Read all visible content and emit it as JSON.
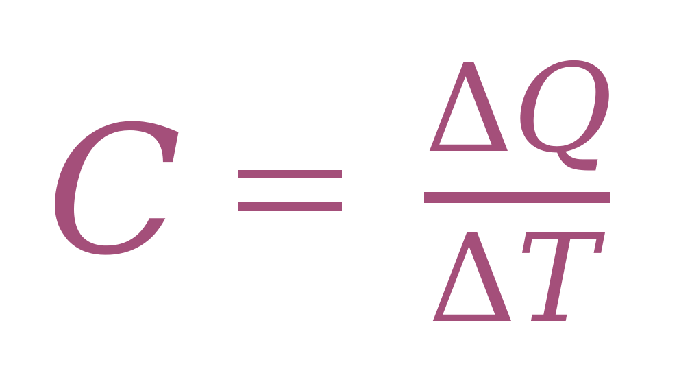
{
  "equation": {
    "lhs": "C",
    "operator": "=",
    "numerator": {
      "delta": "Δ",
      "variable": "Q"
    },
    "denominator": {
      "delta": "Δ",
      "variable": "T"
    }
  },
  "colors": {
    "text": "#a44f7a",
    "background": "#ffffff"
  }
}
